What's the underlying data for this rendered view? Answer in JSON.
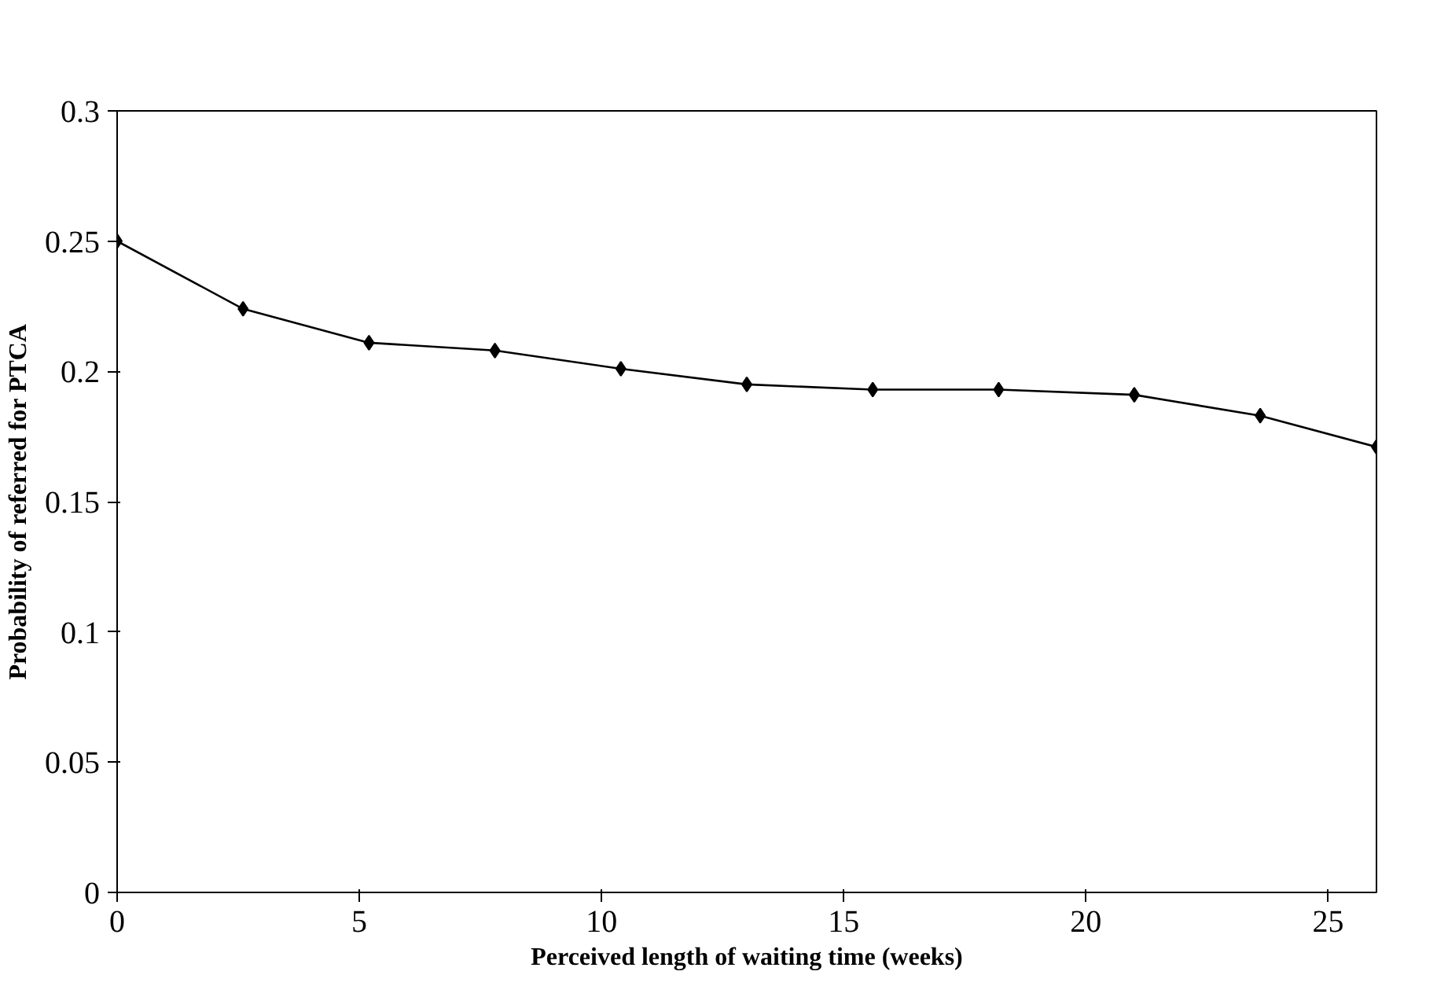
{
  "chart_data": {
    "type": "line",
    "xlabel": "Perceived length of waiting time (weeks)",
    "ylabel": "Probability of referred for PTCA",
    "x": [
      0,
      2.6,
      5.2,
      7.8,
      10.4,
      13,
      15.6,
      18.2,
      21,
      23.6,
      26
    ],
    "series": [
      {
        "color": "#000000",
        "values": [
          0.25,
          0.224,
          0.211,
          0.208,
          0.201,
          0.195,
          0.193,
          0.193,
          0.191,
          0.183,
          0.171
        ]
      }
    ],
    "xlim": [
      0,
      26
    ],
    "xticks": [
      0,
      5,
      10,
      15,
      20,
      25
    ],
    "ylim": [
      0,
      0.3
    ],
    "yticks": [
      0,
      0.05,
      0.1,
      0.15,
      0.2,
      0.25,
      0.3
    ],
    "marker": "diamond",
    "line_style": "solid",
    "grid": false
  }
}
